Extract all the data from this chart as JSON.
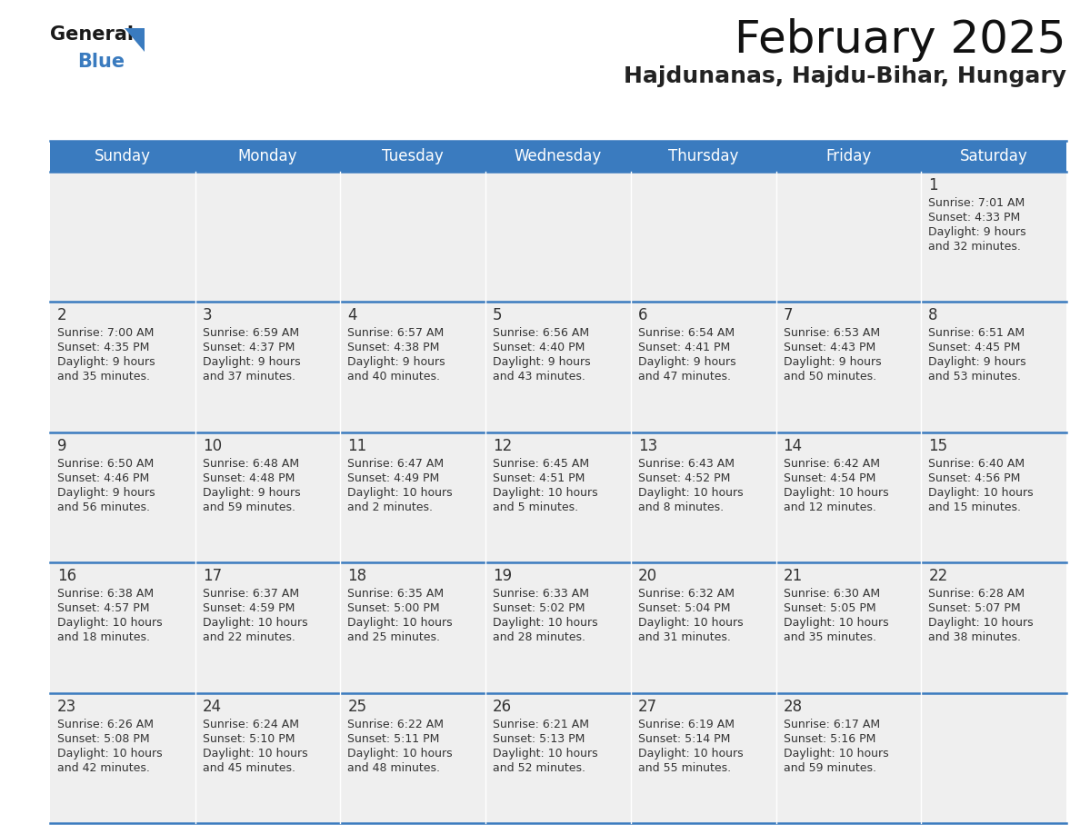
{
  "title": "February 2025",
  "subtitle": "Hajdunanas, Hajdu-Bihar, Hungary",
  "header_color": "#3a7bbf",
  "header_text_color": "#ffffff",
  "cell_bg_color": "#efefef",
  "grid_line_color": "#3a7bbf",
  "text_color": "#333333",
  "days_of_week": [
    "Sunday",
    "Monday",
    "Tuesday",
    "Wednesday",
    "Thursday",
    "Friday",
    "Saturday"
  ],
  "calendar_data": [
    [
      {
        "day": null,
        "sunrise": null,
        "sunset": null,
        "daylight": null
      },
      {
        "day": null,
        "sunrise": null,
        "sunset": null,
        "daylight": null
      },
      {
        "day": null,
        "sunrise": null,
        "sunset": null,
        "daylight": null
      },
      {
        "day": null,
        "sunrise": null,
        "sunset": null,
        "daylight": null
      },
      {
        "day": null,
        "sunrise": null,
        "sunset": null,
        "daylight": null
      },
      {
        "day": null,
        "sunrise": null,
        "sunset": null,
        "daylight": null
      },
      {
        "day": 1,
        "sunrise": "7:01 AM",
        "sunset": "4:33 PM",
        "daylight": "9 hours\nand 32 minutes."
      }
    ],
    [
      {
        "day": 2,
        "sunrise": "7:00 AM",
        "sunset": "4:35 PM",
        "daylight": "9 hours\nand 35 minutes."
      },
      {
        "day": 3,
        "sunrise": "6:59 AM",
        "sunset": "4:37 PM",
        "daylight": "9 hours\nand 37 minutes."
      },
      {
        "day": 4,
        "sunrise": "6:57 AM",
        "sunset": "4:38 PM",
        "daylight": "9 hours\nand 40 minutes."
      },
      {
        "day": 5,
        "sunrise": "6:56 AM",
        "sunset": "4:40 PM",
        "daylight": "9 hours\nand 43 minutes."
      },
      {
        "day": 6,
        "sunrise": "6:54 AM",
        "sunset": "4:41 PM",
        "daylight": "9 hours\nand 47 minutes."
      },
      {
        "day": 7,
        "sunrise": "6:53 AM",
        "sunset": "4:43 PM",
        "daylight": "9 hours\nand 50 minutes."
      },
      {
        "day": 8,
        "sunrise": "6:51 AM",
        "sunset": "4:45 PM",
        "daylight": "9 hours\nand 53 minutes."
      }
    ],
    [
      {
        "day": 9,
        "sunrise": "6:50 AM",
        "sunset": "4:46 PM",
        "daylight": "9 hours\nand 56 minutes."
      },
      {
        "day": 10,
        "sunrise": "6:48 AM",
        "sunset": "4:48 PM",
        "daylight": "9 hours\nand 59 minutes."
      },
      {
        "day": 11,
        "sunrise": "6:47 AM",
        "sunset": "4:49 PM",
        "daylight": "10 hours\nand 2 minutes."
      },
      {
        "day": 12,
        "sunrise": "6:45 AM",
        "sunset": "4:51 PM",
        "daylight": "10 hours\nand 5 minutes."
      },
      {
        "day": 13,
        "sunrise": "6:43 AM",
        "sunset": "4:52 PM",
        "daylight": "10 hours\nand 8 minutes."
      },
      {
        "day": 14,
        "sunrise": "6:42 AM",
        "sunset": "4:54 PM",
        "daylight": "10 hours\nand 12 minutes."
      },
      {
        "day": 15,
        "sunrise": "6:40 AM",
        "sunset": "4:56 PM",
        "daylight": "10 hours\nand 15 minutes."
      }
    ],
    [
      {
        "day": 16,
        "sunrise": "6:38 AM",
        "sunset": "4:57 PM",
        "daylight": "10 hours\nand 18 minutes."
      },
      {
        "day": 17,
        "sunrise": "6:37 AM",
        "sunset": "4:59 PM",
        "daylight": "10 hours\nand 22 minutes."
      },
      {
        "day": 18,
        "sunrise": "6:35 AM",
        "sunset": "5:00 PM",
        "daylight": "10 hours\nand 25 minutes."
      },
      {
        "day": 19,
        "sunrise": "6:33 AM",
        "sunset": "5:02 PM",
        "daylight": "10 hours\nand 28 minutes."
      },
      {
        "day": 20,
        "sunrise": "6:32 AM",
        "sunset": "5:04 PM",
        "daylight": "10 hours\nand 31 minutes."
      },
      {
        "day": 21,
        "sunrise": "6:30 AM",
        "sunset": "5:05 PM",
        "daylight": "10 hours\nand 35 minutes."
      },
      {
        "day": 22,
        "sunrise": "6:28 AM",
        "sunset": "5:07 PM",
        "daylight": "10 hours\nand 38 minutes."
      }
    ],
    [
      {
        "day": 23,
        "sunrise": "6:26 AM",
        "sunset": "5:08 PM",
        "daylight": "10 hours\nand 42 minutes."
      },
      {
        "day": 24,
        "sunrise": "6:24 AM",
        "sunset": "5:10 PM",
        "daylight": "10 hours\nand 45 minutes."
      },
      {
        "day": 25,
        "sunrise": "6:22 AM",
        "sunset": "5:11 PM",
        "daylight": "10 hours\nand 48 minutes."
      },
      {
        "day": 26,
        "sunrise": "6:21 AM",
        "sunset": "5:13 PM",
        "daylight": "10 hours\nand 52 minutes."
      },
      {
        "day": 27,
        "sunrise": "6:19 AM",
        "sunset": "5:14 PM",
        "daylight": "10 hours\nand 55 minutes."
      },
      {
        "day": 28,
        "sunrise": "6:17 AM",
        "sunset": "5:16 PM",
        "daylight": "10 hours\nand 59 minutes."
      },
      {
        "day": null,
        "sunrise": null,
        "sunset": null,
        "daylight": null
      }
    ]
  ],
  "logo_general_color": "#1a1a1a",
  "logo_blue_color": "#3a7bbf",
  "logo_triangle_color": "#3a7bbf",
  "title_fontsize": 36,
  "subtitle_fontsize": 18,
  "dow_fontsize": 12,
  "day_num_fontsize": 12,
  "cell_text_fontsize": 9
}
